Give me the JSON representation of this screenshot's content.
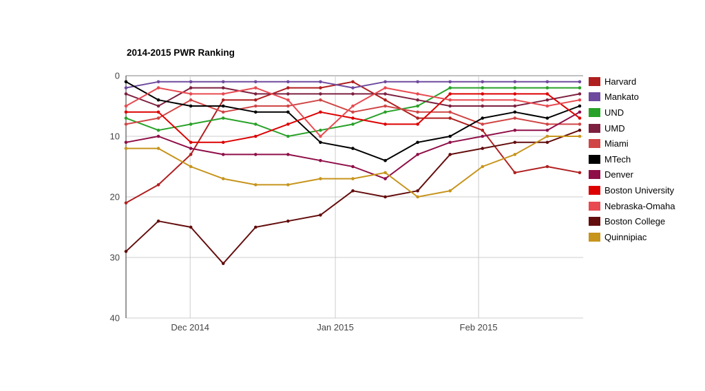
{
  "title": "2014-2015 PWR Ranking",
  "chart_data": {
    "type": "line",
    "title": "2014-2015 PWR Ranking",
    "xlabel": "",
    "ylabel": "",
    "y_ticks": [
      0,
      10,
      20,
      30,
      40
    ],
    "ylim": [
      0,
      40
    ],
    "y_inverted": true,
    "grid": true,
    "legend_position": "right",
    "n_points": 15,
    "x_unit": "weekly ranking periods (mid-Nov 2014 through late Feb 2015)",
    "month_gridlines": [
      {
        "label": "Dec 2014",
        "x_index": 1.98
      },
      {
        "label": "Jan 2015",
        "x_index": 6.46
      },
      {
        "label": "Feb 2015",
        "x_index": 10.88
      }
    ],
    "series": [
      {
        "name": "Harvard",
        "color": "#B01F1F",
        "values": [
          21,
          18,
          13,
          4,
          4,
          2,
          2,
          1,
          4,
          7,
          7,
          9,
          16,
          15,
          16
        ]
      },
      {
        "name": "Mankato",
        "color": "#6E4A9E",
        "values": [
          2,
          1,
          1,
          1,
          1,
          1,
          1,
          2,
          1,
          1,
          1,
          1,
          1,
          1,
          1
        ]
      },
      {
        "name": "UND",
        "color": "#28A128",
        "values": [
          7,
          9,
          8,
          7,
          8,
          10,
          9,
          8,
          6,
          5,
          2,
          2,
          2,
          2,
          2
        ]
      },
      {
        "name": "UMD",
        "color": "#7D2040",
        "values": [
          3,
          5,
          2,
          2,
          3,
          3,
          3,
          3,
          3,
          4,
          5,
          5,
          5,
          4,
          3
        ]
      },
      {
        "name": "Miami",
        "color": "#D04545",
        "values": [
          8,
          7,
          4,
          6,
          5,
          5,
          4,
          6,
          5,
          6,
          6,
          8,
          7,
          8,
          8
        ]
      },
      {
        "name": "MTech",
        "color": "#000000",
        "values": [
          1,
          4,
          5,
          5,
          6,
          6,
          11,
          12,
          14,
          11,
          10,
          7,
          6,
          7,
          5
        ]
      },
      {
        "name": "Denver",
        "color": "#8F0E48",
        "values": [
          11,
          10,
          12,
          13,
          13,
          13,
          14,
          15,
          17,
          13,
          11,
          10,
          9,
          9,
          6
        ]
      },
      {
        "name": "Boston University",
        "color": "#DD0000",
        "values": [
          6,
          6,
          11,
          11,
          10,
          8,
          6,
          7,
          8,
          8,
          3,
          3,
          3,
          3,
          7
        ]
      },
      {
        "name": "Nebraska-Omaha",
        "color": "#E84A50",
        "values": [
          5,
          2,
          3,
          3,
          2,
          4,
          10,
          5,
          2,
          3,
          4,
          4,
          4,
          5,
          4
        ]
      },
      {
        "name": "Boston College",
        "color": "#640D0D",
        "values": [
          29,
          24,
          25,
          31,
          25,
          24,
          23,
          19,
          20,
          19,
          13,
          12,
          11,
          11,
          9
        ]
      },
      {
        "name": "Quinnipiac",
        "color": "#C7941C",
        "values": [
          12,
          12,
          15,
          17,
          18,
          18,
          17,
          17,
          16,
          20,
          19,
          15,
          13,
          10,
          10
        ]
      }
    ]
  },
  "axis_colors": {
    "tick_label": "#444444",
    "gridline": "#cccccc",
    "zero_baseline": "#808080",
    "left_axis": "#333333"
  }
}
